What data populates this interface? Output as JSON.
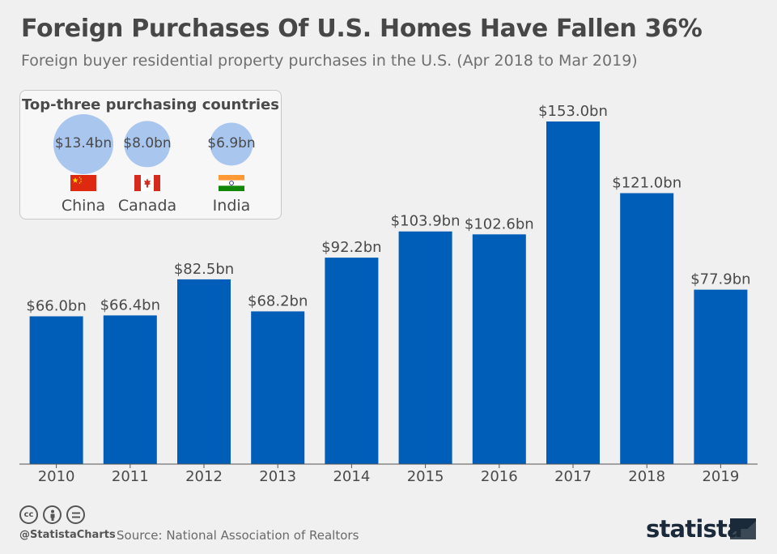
{
  "header": {
    "title": "Foreign Purchases Of U.S. Homes Have Fallen 36%",
    "subtitle": "Foreign buyer residential property purchases in the U.S. (Apr 2018 to Mar 2019)"
  },
  "inset": {
    "title": "Top-three purchasing countries",
    "countries": [
      {
        "name": "China",
        "value_label": "$13.4bn",
        "value": 13.4
      },
      {
        "name": "Canada",
        "value_label": "$8.0bn",
        "value": 8.0
      },
      {
        "name": "India",
        "value_label": "$6.9bn",
        "value": 6.9
      }
    ]
  },
  "chart_data": {
    "type": "bar",
    "categories": [
      "2010",
      "2011",
      "2012",
      "2013",
      "2014",
      "2015",
      "2016",
      "2017",
      "2018",
      "2019"
    ],
    "values": [
      66.0,
      66.4,
      82.5,
      68.2,
      92.2,
      103.9,
      102.6,
      153.0,
      121.0,
      77.9
    ],
    "data_labels": [
      "$66.0bn",
      "$66.4bn",
      "$82.5bn",
      "$68.2bn",
      "$92.2bn",
      "$103.9bn",
      "$102.6bn",
      "$153.0bn",
      "$121.0bn",
      "$77.9bn"
    ],
    "title": "Foreign Purchases Of U.S. Homes Have Fallen 36%",
    "ylim": [
      0,
      153.0
    ],
    "bar_color": "#005eb8",
    "grid": false
  },
  "footer": {
    "handle": "@StatistaCharts",
    "source": "Source: National Association of Realtors",
    "brand": "statista",
    "license_icons": [
      "cc-icon",
      "by-icon",
      "nd-icon"
    ]
  },
  "colors": {
    "bar": "#005eb8",
    "bubble": "#a9c6ee",
    "background": "#f0f0f0"
  }
}
